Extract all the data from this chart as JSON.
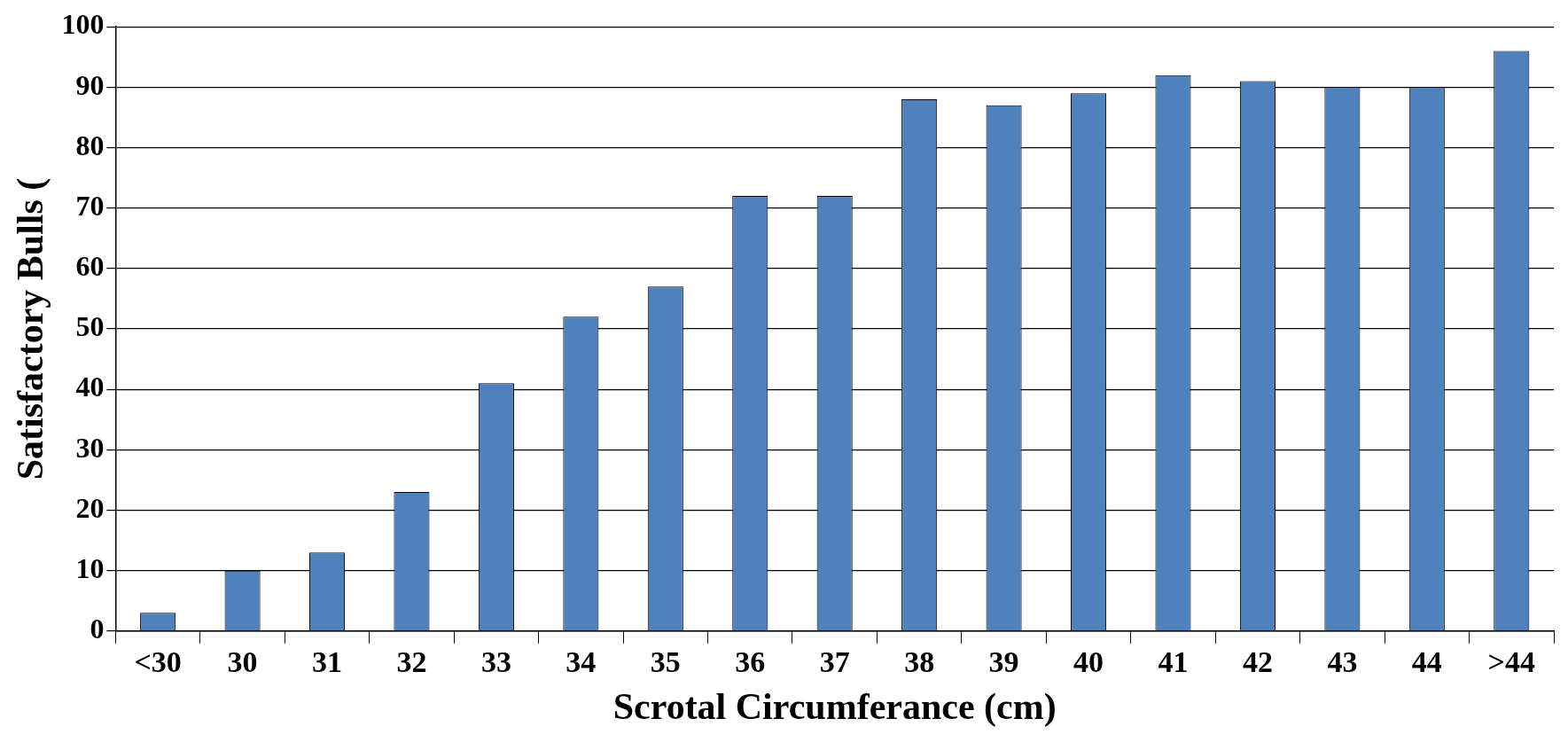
{
  "chart_data": {
    "type": "bar",
    "xlabel": "Scrotal Circumferance (cm)",
    "ylabel": "Satisfactory Bulls (",
    "categories": [
      "<30",
      "30",
      "31",
      "32",
      "33",
      "34",
      "35",
      "36",
      "37",
      "38",
      "39",
      "40",
      "41",
      "42",
      "43",
      "44",
      ">44"
    ],
    "values": [
      3,
      10,
      13,
      23,
      41,
      52,
      57,
      72,
      72,
      88,
      87,
      89,
      92,
      91,
      90,
      90,
      96
    ],
    "color": "#4f81bd",
    "ylim": [
      0,
      100
    ],
    "yticks": [
      0,
      10,
      20,
      30,
      40,
      50,
      60,
      70,
      80,
      90,
      100
    ],
    "grid": "y",
    "legend": false
  }
}
